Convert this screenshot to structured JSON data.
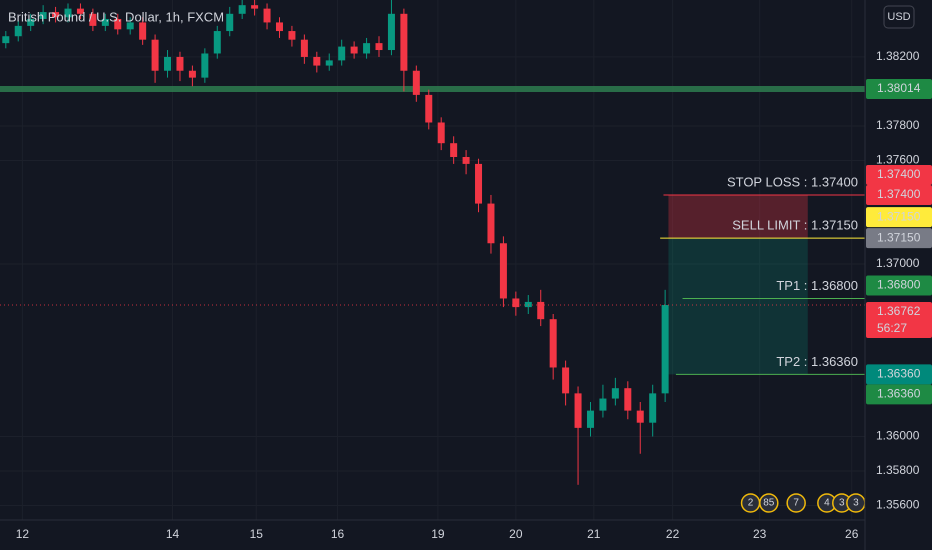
{
  "chart_data": {
    "type": "candlestick",
    "title": "British Pound / U.S. Dollar, 1h, FXCM",
    "currency": "USD",
    "up_color": "#089981",
    "down_color": "#f23645",
    "grid": true,
    "xlim": [
      -0.27,
      10.16
    ],
    "ylim": [
      1.35516,
      1.3853
    ],
    "yticks": [
      {
        "value": 1.382,
        "label": "1.38200"
      },
      {
        "value": 1.378,
        "label": "1.37800"
      },
      {
        "value": 1.376,
        "label": "1.37600"
      },
      {
        "value": 1.37,
        "label": "1.37000"
      },
      {
        "value": 1.36,
        "label": "1.36000"
      },
      {
        "value": 1.358,
        "label": "1.35800"
      },
      {
        "value": 1.356,
        "label": "1.35600"
      }
    ],
    "xticks": [
      {
        "value": 0,
        "label": "12"
      },
      {
        "value": 1.81,
        "label": "14"
      },
      {
        "value": 2.82,
        "label": "15"
      },
      {
        "value": 3.8,
        "label": "16"
      },
      {
        "value": 5.01,
        "label": "19"
      },
      {
        "value": 5.95,
        "label": "20"
      },
      {
        "value": 6.89,
        "label": "21"
      },
      {
        "value": 7.84,
        "label": "22"
      },
      {
        "value": 8.89,
        "label": "23"
      },
      {
        "value": 10,
        "label": "26"
      }
    ],
    "x": [
      -0.2,
      -0.05,
      0.1,
      0.25,
      0.4,
      0.55,
      0.7,
      0.85,
      1,
      1.15,
      1.3,
      1.45,
      1.6,
      1.75,
      1.9,
      2.05,
      2.2,
      2.35,
      2.5,
      2.65,
      2.8,
      2.95,
      3.1,
      3.25,
      3.4,
      3.55,
      3.7,
      3.85,
      4,
      4.15,
      4.3,
      4.45,
      4.6,
      4.75,
      4.9,
      5.05,
      5.2,
      5.35,
      5.5,
      5.65,
      5.8,
      5.95,
      6.1,
      6.25,
      6.4,
      6.55,
      6.7,
      6.85,
      7,
      7.15,
      7.3,
      7.45,
      7.6,
      7.75
    ],
    "open": [
      1.3828,
      1.3832,
      1.3838,
      1.3842,
      1.3846,
      1.3843,
      1.3848,
      1.3845,
      1.3838,
      1.3842,
      1.3836,
      1.384,
      1.383,
      1.3812,
      1.382,
      1.3812,
      1.3808,
      1.3822,
      1.3835,
      1.3845,
      1.385,
      1.3848,
      1.384,
      1.3835,
      1.383,
      1.382,
      1.3815,
      1.3818,
      1.3826,
      1.3822,
      1.3828,
      1.3824,
      1.3845,
      1.3812,
      1.3798,
      1.3782,
      1.377,
      1.3762,
      1.3758,
      1.3735,
      1.3712,
      1.368,
      1.3675,
      1.3678,
      1.3668,
      1.364,
      1.3625,
      1.3605,
      1.3615,
      1.3622,
      1.3628,
      1.3615,
      1.3608,
      1.3625
    ],
    "high": [
      1.3835,
      1.3841,
      1.3845,
      1.385,
      1.3849,
      1.3851,
      1.3851,
      1.3848,
      1.3845,
      1.3845,
      1.3843,
      1.3843,
      1.3833,
      1.3824,
      1.3823,
      1.3815,
      1.3825,
      1.3838,
      1.3849,
      1.3854,
      1.3853,
      1.3851,
      1.3843,
      1.3838,
      1.3833,
      1.3823,
      1.3822,
      1.383,
      1.3829,
      1.3831,
      1.3832,
      1.3853,
      1.3848,
      1.3815,
      1.3801,
      1.3785,
      1.3774,
      1.3766,
      1.3761,
      1.374,
      1.3716,
      1.3684,
      1.3682,
      1.3685,
      1.3671,
      1.3644,
      1.3629,
      1.362,
      1.363,
      1.3634,
      1.3632,
      1.362,
      1.363,
      1.3685
    ],
    "low": [
      1.3825,
      1.3829,
      1.3835,
      1.3839,
      1.384,
      1.384,
      1.3842,
      1.3835,
      1.3835,
      1.3833,
      1.3833,
      1.3827,
      1.3805,
      1.3808,
      1.3806,
      1.3803,
      1.3805,
      1.3819,
      1.3832,
      1.3842,
      1.3844,
      1.3836,
      1.3831,
      1.3826,
      1.3816,
      1.3811,
      1.3812,
      1.3815,
      1.3819,
      1.3819,
      1.382,
      1.3821,
      1.38,
      1.3794,
      1.3778,
      1.3766,
      1.3758,
      1.3752,
      1.373,
      1.3706,
      1.3675,
      1.367,
      1.3671,
      1.3664,
      1.3633,
      1.3618,
      1.3572,
      1.36,
      1.3611,
      1.3618,
      1.361,
      1.359,
      1.36,
      1.362
    ],
    "close": [
      1.3832,
      1.3838,
      1.3842,
      1.3846,
      1.3843,
      1.3848,
      1.3845,
      1.3838,
      1.3842,
      1.3836,
      1.384,
      1.383,
      1.3812,
      1.382,
      1.3812,
      1.3808,
      1.3822,
      1.3835,
      1.3845,
      1.385,
      1.3848,
      1.384,
      1.3835,
      1.383,
      1.382,
      1.3815,
      1.3818,
      1.3826,
      1.3822,
      1.3828,
      1.3824,
      1.3845,
      1.3812,
      1.3798,
      1.3782,
      1.377,
      1.3762,
      1.3758,
      1.3735,
      1.3712,
      1.368,
      1.3675,
      1.3678,
      1.3668,
      1.364,
      1.3625,
      1.3605,
      1.3615,
      1.3622,
      1.3628,
      1.3615,
      1.3608,
      1.3625,
      1.36762
    ],
    "support_line": {
      "value": 1.38014,
      "color": "#2e7d4f"
    },
    "position": {
      "stop": 1.374,
      "entry": 1.3715,
      "target": 1.3636,
      "x_start": 7.79,
      "x_end": 9.47
    },
    "orders": [
      {
        "text": "STOP LOSS : 1.37400",
        "value": 1.374,
        "color": "#f23645",
        "x_start": 7.73
      },
      {
        "text": "SELL LIMIT : 1.37150",
        "value": 1.3715,
        "color": "#ffeb3b",
        "x_start": 7.69
      },
      {
        "text": "TP1 : 1.36800",
        "value": 1.368,
        "color": "#4caf50",
        "x_start": 7.96
      },
      {
        "text": "TP2 : 1.36360",
        "value": 1.3636,
        "color": "#4caf50",
        "x_start": 7.88
      }
    ],
    "price_labels": [
      {
        "value": 1.38014,
        "label": "1.38014",
        "color": "#1e8a44",
        "text_color": "#ffffff"
      },
      {
        "value": 1.374,
        "label": "1.37400",
        "color": "#f23645",
        "text_color": "#ffffff"
      },
      {
        "value": 1.374,
        "label": "1.37400",
        "color": "#f23645",
        "text_color": "#ffffff"
      },
      {
        "value": 1.3715,
        "label": "1.37150",
        "color": "#ffeb3b",
        "text_color": "#131722"
      },
      {
        "value": 1.3715,
        "label": "1.37150",
        "color": "#787b86",
        "text_color": "#ffffff"
      },
      {
        "value": 1.368,
        "label": "1.36800",
        "color": "#1e8a44",
        "text_color": "#ffffff"
      },
      {
        "value": 1.36762,
        "label": "1.36762",
        "sub": "56:27",
        "color": "#f23645",
        "text_color": "#ffffff"
      },
      {
        "value": 1.3636,
        "label": "1.36360",
        "color": "#00897b",
        "text_color": "#ffffff"
      },
      {
        "value": 1.3636,
        "label": "1.36360",
        "color": "#1e8a44",
        "text_color": "#ffffff"
      }
    ],
    "events": [
      {
        "x": 8.78,
        "label": "2"
      },
      {
        "x": 9.0,
        "label": "85"
      },
      {
        "x": 9.33,
        "label": "7"
      },
      {
        "x": 9.7,
        "label": "4"
      },
      {
        "x": 9.88,
        "label": "3"
      },
      {
        "x": 10.05,
        "label": "3"
      }
    ]
  }
}
